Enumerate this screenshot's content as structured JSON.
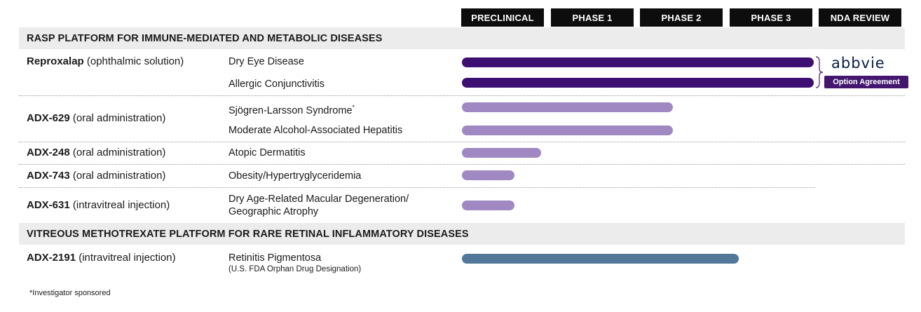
{
  "chart_data": {
    "type": "bar",
    "phases": [
      "PRECLINICAL",
      "PHASE 1",
      "PHASE 2",
      "PHASE 3",
      "NDA REVIEW"
    ],
    "sections": [
      {
        "title": "RASP PLATFORM FOR IMMUNE-MEDIATED AND METABOLIC DISEASES"
      },
      {
        "title": "VITREOUS METHOTREXATE PLATFORM FOR RARE RETINAL INFLAMMATORY DISEASES"
      }
    ],
    "drugs": [
      {
        "name": "Reproxalap",
        "route": " (ophthalmic solution)"
      },
      {
        "name": "ADX-629",
        "route": " (oral administration)"
      },
      {
        "name": "ADX-248",
        "route": " (oral administration)"
      },
      {
        "name": "ADX-743",
        "route": " (oral administration)"
      },
      {
        "name": "ADX-631",
        "route": " (intravitreal injection)"
      },
      {
        "name": "ADX-2191",
        "route": " (intravitreal injection)"
      }
    ],
    "indications": [
      {
        "label": "Dry Eye Disease",
        "progress": 4.0,
        "color": "#3d0f73"
      },
      {
        "label": "Allergic Conjunctivitis",
        "progress": 4.0,
        "color": "#3d0f73"
      },
      {
        "label": "Sjögren-Larsson Syndrome",
        "sup": "*",
        "progress": 2.4,
        "color": "#a089c2"
      },
      {
        "label": "Moderate Alcohol-Associated Hepatitis",
        "progress": 2.4,
        "color": "#a089c2"
      },
      {
        "label": "Atopic Dermatitis",
        "progress": 0.9,
        "color": "#a089c2"
      },
      {
        "label": "Obesity/Hypertryglyceridemia",
        "progress": 0.6,
        "color": "#a089c2"
      },
      {
        "label": "Dry Age-Related Macular Degeneration/",
        "label2": "Geographic Atrophy",
        "progress": 0.6,
        "color": "#a089c2"
      },
      {
        "label": "Retinitis Pigmentosa",
        "note": "(U.S. FDA Orphan Drug Designation)",
        "progress": 3.15,
        "color": "#527799"
      }
    ],
    "partner": {
      "logo_text": "abbvie",
      "badge": "Option Agreement"
    },
    "footnote": "*Investigator sponsored"
  }
}
